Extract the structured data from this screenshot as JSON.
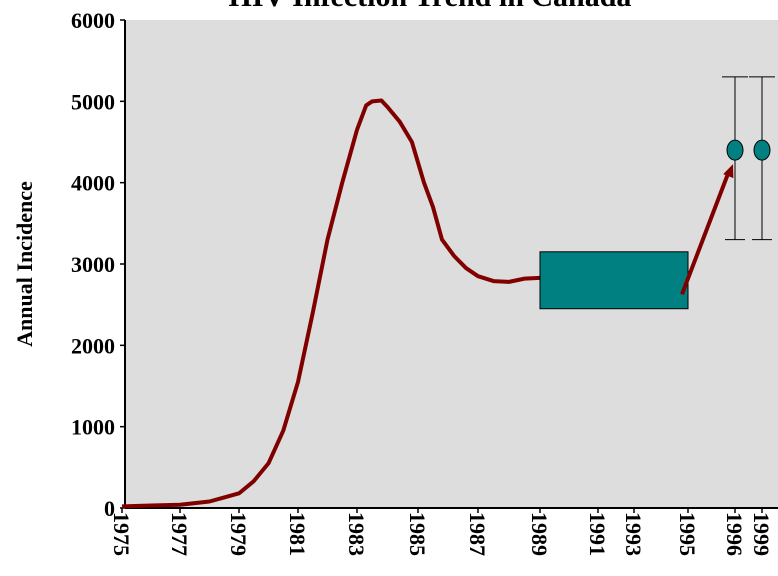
{
  "chart_data": {
    "type": "line",
    "title": "HIV Infection Trend in Canada",
    "y_label": "Annual Incidence",
    "xticks": [
      1975,
      1977,
      1979,
      1981,
      1983,
      1985,
      1987,
      1989,
      1991,
      1993,
      1995,
      1996,
      1999
    ],
    "ylim": [
      0,
      6000
    ],
    "yticks": [
      0,
      1000,
      2000,
      3000,
      4000,
      5000,
      6000
    ],
    "background": "#dddddd",
    "series": [
      {
        "color": "#800000",
        "x": [
          1975,
          1976,
          1977,
          1978,
          1978.5,
          1979,
          1979.5,
          1980,
          1980.5,
          1981,
          1981.5,
          1982,
          1982.5,
          1983,
          1983.3,
          1983.5,
          1983.8,
          1984,
          1984.4,
          1984.8,
          1985.2,
          1985.5,
          1985.8,
          1986.2,
          1986.6,
          1987,
          1987.5,
          1988,
          1988.5,
          1989
        ],
        "values": [
          20,
          30,
          40,
          80,
          130,
          180,
          330,
          550,
          950,
          1550,
          2400,
          3300,
          4000,
          4650,
          4950,
          5000,
          5010,
          4930,
          4750,
          4500,
          4000,
          3700,
          3300,
          3100,
          2950,
          2850,
          2790,
          2780,
          2820,
          2830
        ]
      }
    ],
    "range_box": {
      "color": "#008080",
      "x": [
        1989,
        1995
      ],
      "values": [
        2450,
        3150
      ]
    },
    "estimates": {
      "color": "#008080",
      "x": [
        1996,
        1999
      ],
      "values": [
        4400,
        4400
      ],
      "low": [
        3300,
        3300
      ],
      "high": [
        5300,
        5300
      ]
    }
  }
}
